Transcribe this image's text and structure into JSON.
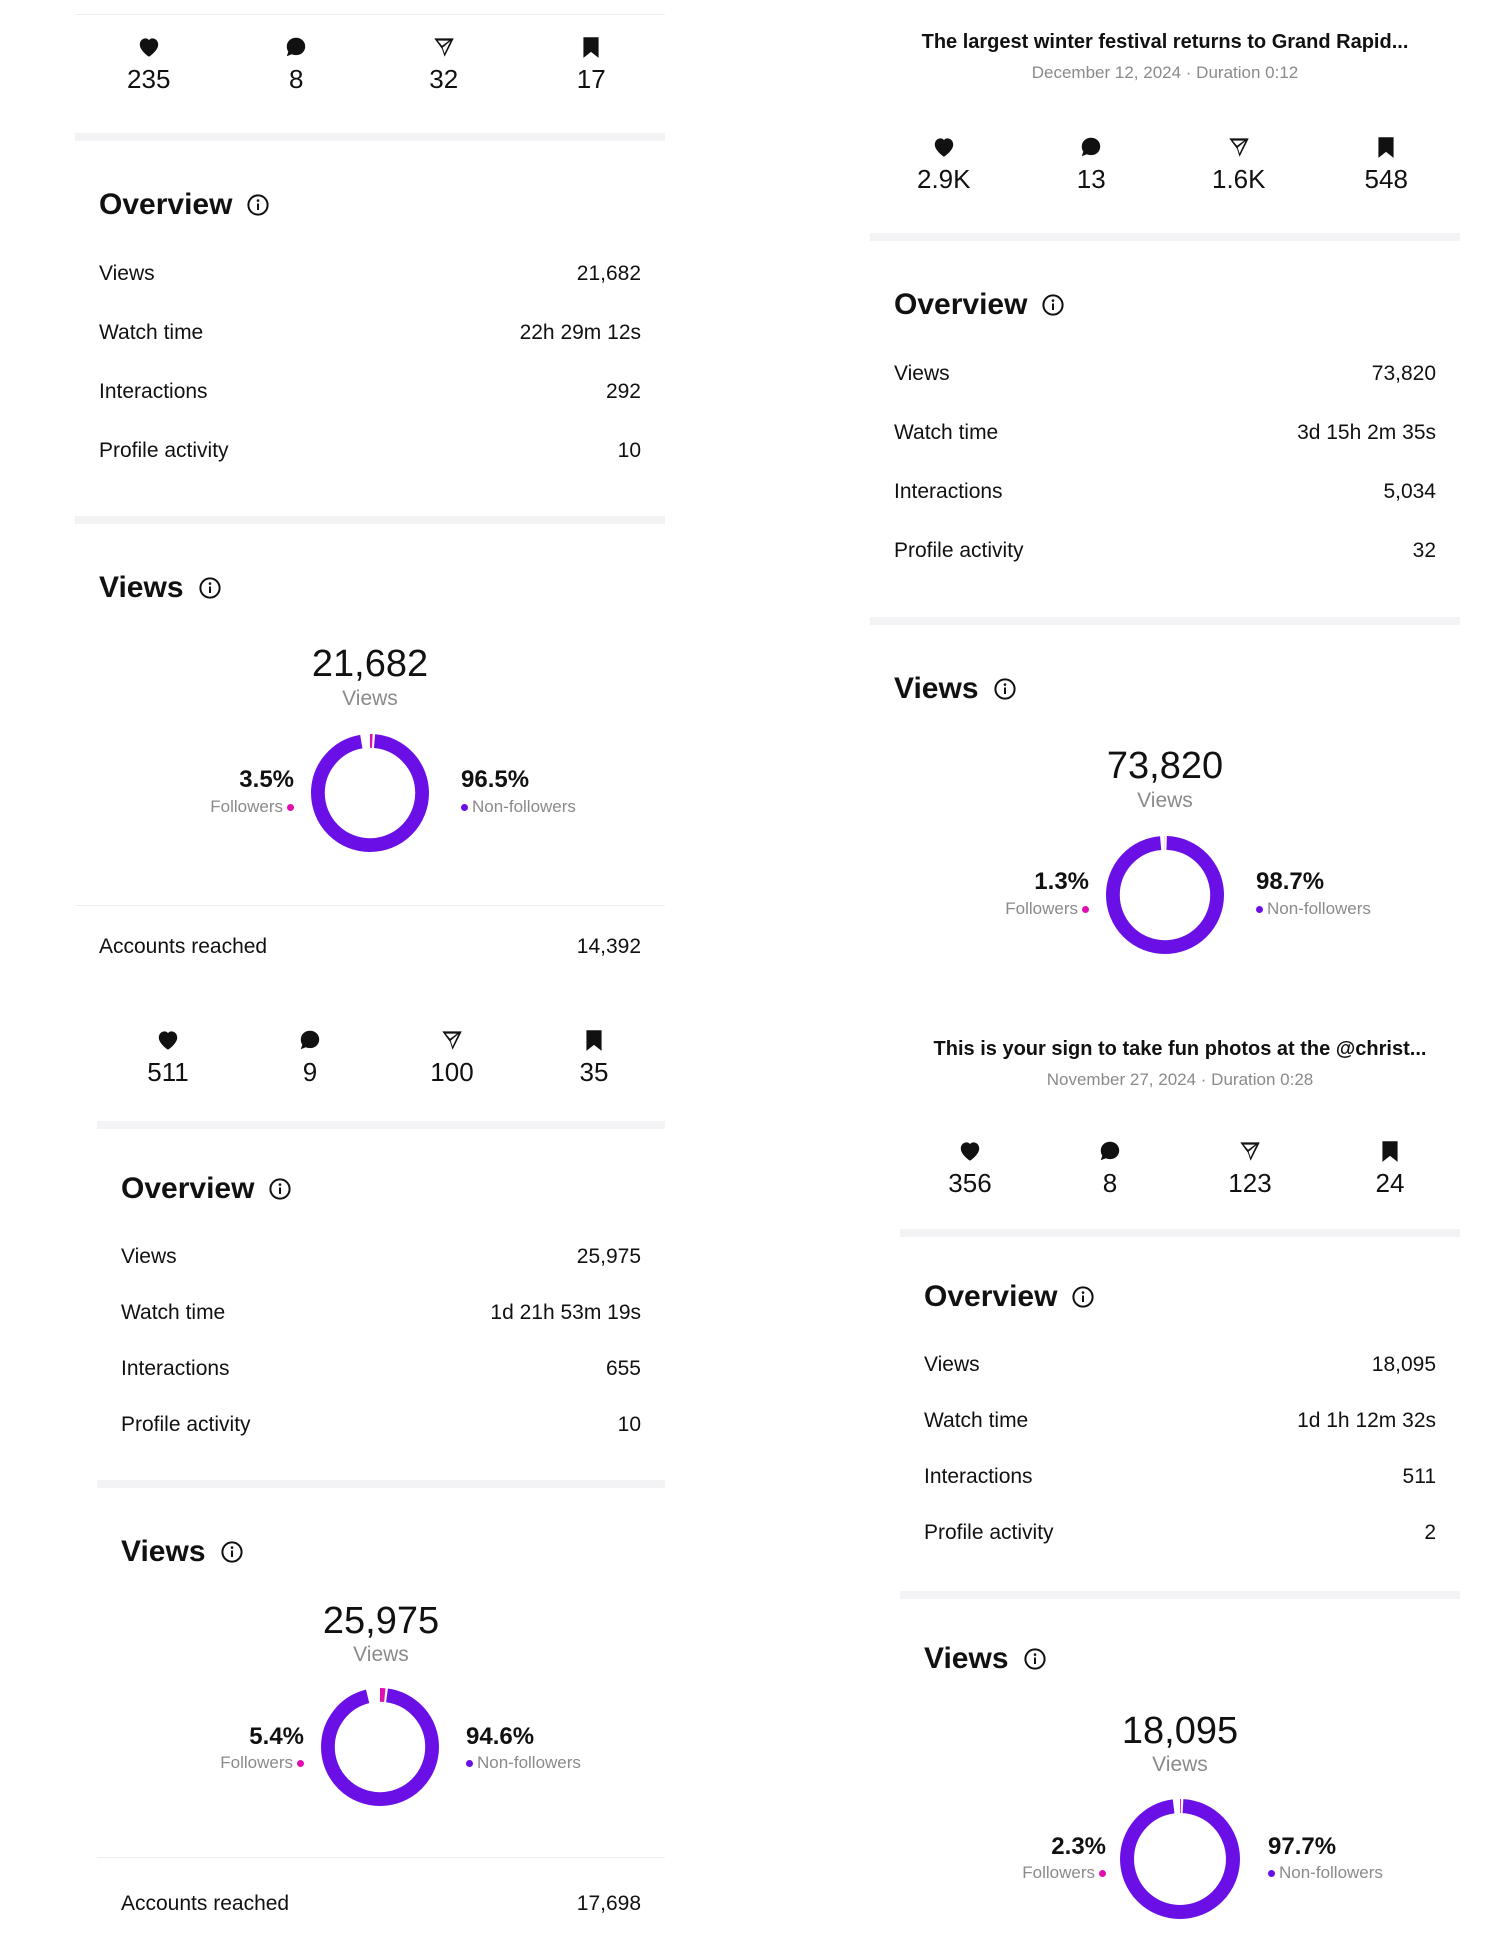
{
  "colors": {
    "followers": "#e010b0",
    "non_followers": "#6a10e6",
    "track": "#ffffff"
  },
  "icons": [
    "heart-icon",
    "comment-icon",
    "send-icon",
    "bookmark-icon",
    "info-icon"
  ],
  "left_top": {
    "stats": {
      "likes": "235",
      "comments": "8",
      "shares": "32",
      "saves": "17"
    },
    "overview": {
      "title": "Overview",
      "rows": [
        {
          "label": "Views",
          "value": "21,682"
        },
        {
          "label": "Watch time",
          "value": "22h 29m 12s"
        },
        {
          "label": "Interactions",
          "value": "292"
        },
        {
          "label": "Profile activity",
          "value": "10"
        }
      ]
    },
    "views": {
      "title": "Views",
      "total": "21,682",
      "total_label": "Views",
      "followers_pct": "3.5%",
      "followers_label": "Followers",
      "followers_fraction": 0.035,
      "non_followers_pct": "96.5%",
      "non_followers_label": "Non-followers"
    },
    "accounts_reached": {
      "label": "Accounts reached",
      "value": "14,392"
    }
  },
  "left_bottom": {
    "stats": {
      "likes": "511",
      "comments": "9",
      "shares": "100",
      "saves": "35"
    },
    "overview": {
      "title": "Overview",
      "rows": [
        {
          "label": "Views",
          "value": "25,975"
        },
        {
          "label": "Watch time",
          "value": "1d 21h 53m 19s"
        },
        {
          "label": "Interactions",
          "value": "655"
        },
        {
          "label": "Profile activity",
          "value": "10"
        }
      ]
    },
    "views": {
      "title": "Views",
      "total": "25,975",
      "total_label": "Views",
      "followers_pct": "5.4%",
      "followers_label": "Followers",
      "followers_fraction": 0.054,
      "non_followers_pct": "94.6%",
      "non_followers_label": "Non-followers"
    },
    "accounts_reached": {
      "label": "Accounts reached",
      "value": "17,698"
    }
  },
  "right_top": {
    "post_title": "The largest winter festival returns to Grand Rapid...",
    "post_meta": "December 12, 2024 · Duration 0:12",
    "stats": {
      "likes": "2.9K",
      "comments": "13",
      "shares": "1.6K",
      "saves": "548"
    },
    "overview": {
      "title": "Overview",
      "rows": [
        {
          "label": "Views",
          "value": "73,820"
        },
        {
          "label": "Watch time",
          "value": "3d 15h 2m 35s"
        },
        {
          "label": "Interactions",
          "value": "5,034"
        },
        {
          "label": "Profile activity",
          "value": "32"
        }
      ]
    },
    "views": {
      "title": "Views",
      "total": "73,820",
      "total_label": "Views",
      "followers_pct": "1.3%",
      "followers_label": "Followers",
      "followers_fraction": 0.013,
      "non_followers_pct": "98.7%",
      "non_followers_label": "Non-followers"
    }
  },
  "right_bottom": {
    "post_title": "This is your sign to take fun photos at the @christ...",
    "post_meta": "November 27, 2024 · Duration 0:28",
    "stats": {
      "likes": "356",
      "comments": "8",
      "shares": "123",
      "saves": "24"
    },
    "overview": {
      "title": "Overview",
      "rows": [
        {
          "label": "Views",
          "value": "18,095"
        },
        {
          "label": "Watch time",
          "value": "1d 1h 12m 32s"
        },
        {
          "label": "Interactions",
          "value": "511"
        },
        {
          "label": "Profile activity",
          "value": "2"
        }
      ]
    },
    "views": {
      "title": "Views",
      "total": "18,095",
      "total_label": "Views",
      "followers_pct": "2.3%",
      "followers_label": "Followers",
      "followers_fraction": 0.023,
      "non_followers_pct": "97.7%",
      "non_followers_label": "Non-followers"
    }
  }
}
